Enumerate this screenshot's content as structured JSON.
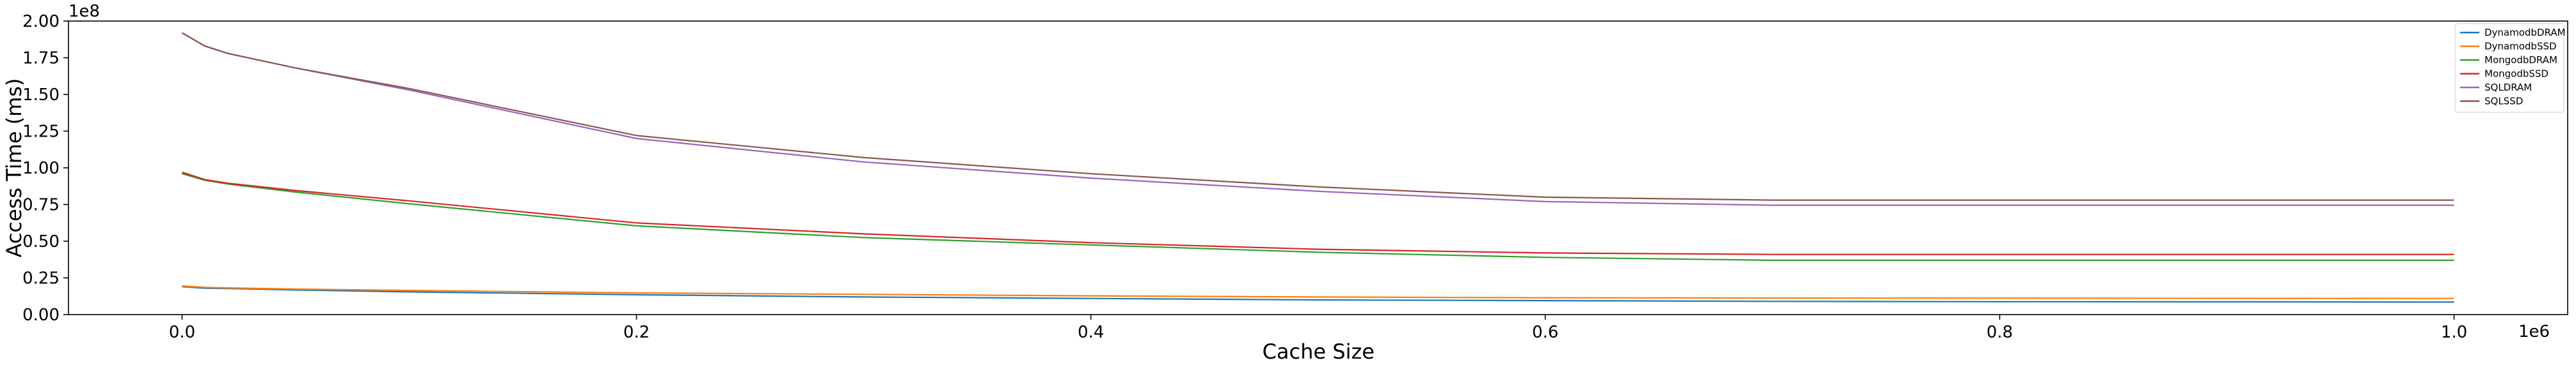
{
  "chart_data": {
    "type": "line",
    "xlabel": "Cache Size",
    "ylabel": "Access Time (ms)",
    "x_offset_label": "1e6",
    "y_offset_label": "1e8",
    "x_multiplier": 1000000,
    "y_multiplier": 100000000,
    "xlim": [
      -0.05,
      1.05
    ],
    "ylim": [
      0,
      2.0
    ],
    "x_ticks": [
      0.0,
      0.2,
      0.4,
      0.6,
      0.8,
      1.0
    ],
    "x_tick_labels": [
      "0.0",
      "0.2",
      "0.4",
      "0.6",
      "0.8",
      "1.0"
    ],
    "y_ticks": [
      0.0,
      0.25,
      0.5,
      0.75,
      1.0,
      1.25,
      1.5,
      1.75,
      2.0
    ],
    "y_tick_labels": [
      "0.00",
      "0.25",
      "0.50",
      "0.75",
      "1.00",
      "1.25",
      "1.50",
      "1.75",
      "2.00"
    ],
    "grid": false,
    "legend_position": "top-right",
    "x": [
      0.0,
      0.01,
      0.02,
      0.05,
      0.1,
      0.2,
      0.3,
      0.4,
      0.5,
      0.6,
      0.7,
      0.8,
      0.9,
      1.0
    ],
    "series": [
      {
        "name": "DynamodbDRAM",
        "color": "#1f77b4",
        "values": [
          0.19,
          0.18,
          0.178,
          0.168,
          0.155,
          0.135,
          0.12,
          0.11,
          0.1,
          0.095,
          0.09,
          0.088,
          0.087,
          0.085
        ]
      },
      {
        "name": "DynamodbSSD",
        "color": "#ff7f0e",
        "values": [
          0.195,
          0.185,
          0.182,
          0.174,
          0.165,
          0.148,
          0.138,
          0.128,
          0.12,
          0.115,
          0.113,
          0.112,
          0.111,
          0.11
        ]
      },
      {
        "name": "MongodbDRAM",
        "color": "#2ca02c",
        "values": [
          0.96,
          0.915,
          0.89,
          0.835,
          0.755,
          0.605,
          0.525,
          0.475,
          0.425,
          0.39,
          0.37,
          0.37,
          0.37,
          0.37
        ]
      },
      {
        "name": "MongodbSSD",
        "color": "#d62728",
        "values": [
          0.97,
          0.92,
          0.895,
          0.845,
          0.775,
          0.625,
          0.55,
          0.49,
          0.445,
          0.42,
          0.41,
          0.41,
          0.41,
          0.41
        ]
      },
      {
        "name": "SQLDRAM",
        "color": "#9467bd",
        "values": [
          1.92,
          1.83,
          1.78,
          1.68,
          1.53,
          1.2,
          1.04,
          0.93,
          0.84,
          0.77,
          0.745,
          0.745,
          0.745,
          0.745
        ]
      },
      {
        "name": "SQLSSD",
        "color": "#8c564b",
        "values": [
          1.92,
          1.83,
          1.78,
          1.68,
          1.54,
          1.22,
          1.07,
          0.96,
          0.87,
          0.8,
          0.78,
          0.78,
          0.78,
          0.78
        ]
      }
    ]
  }
}
